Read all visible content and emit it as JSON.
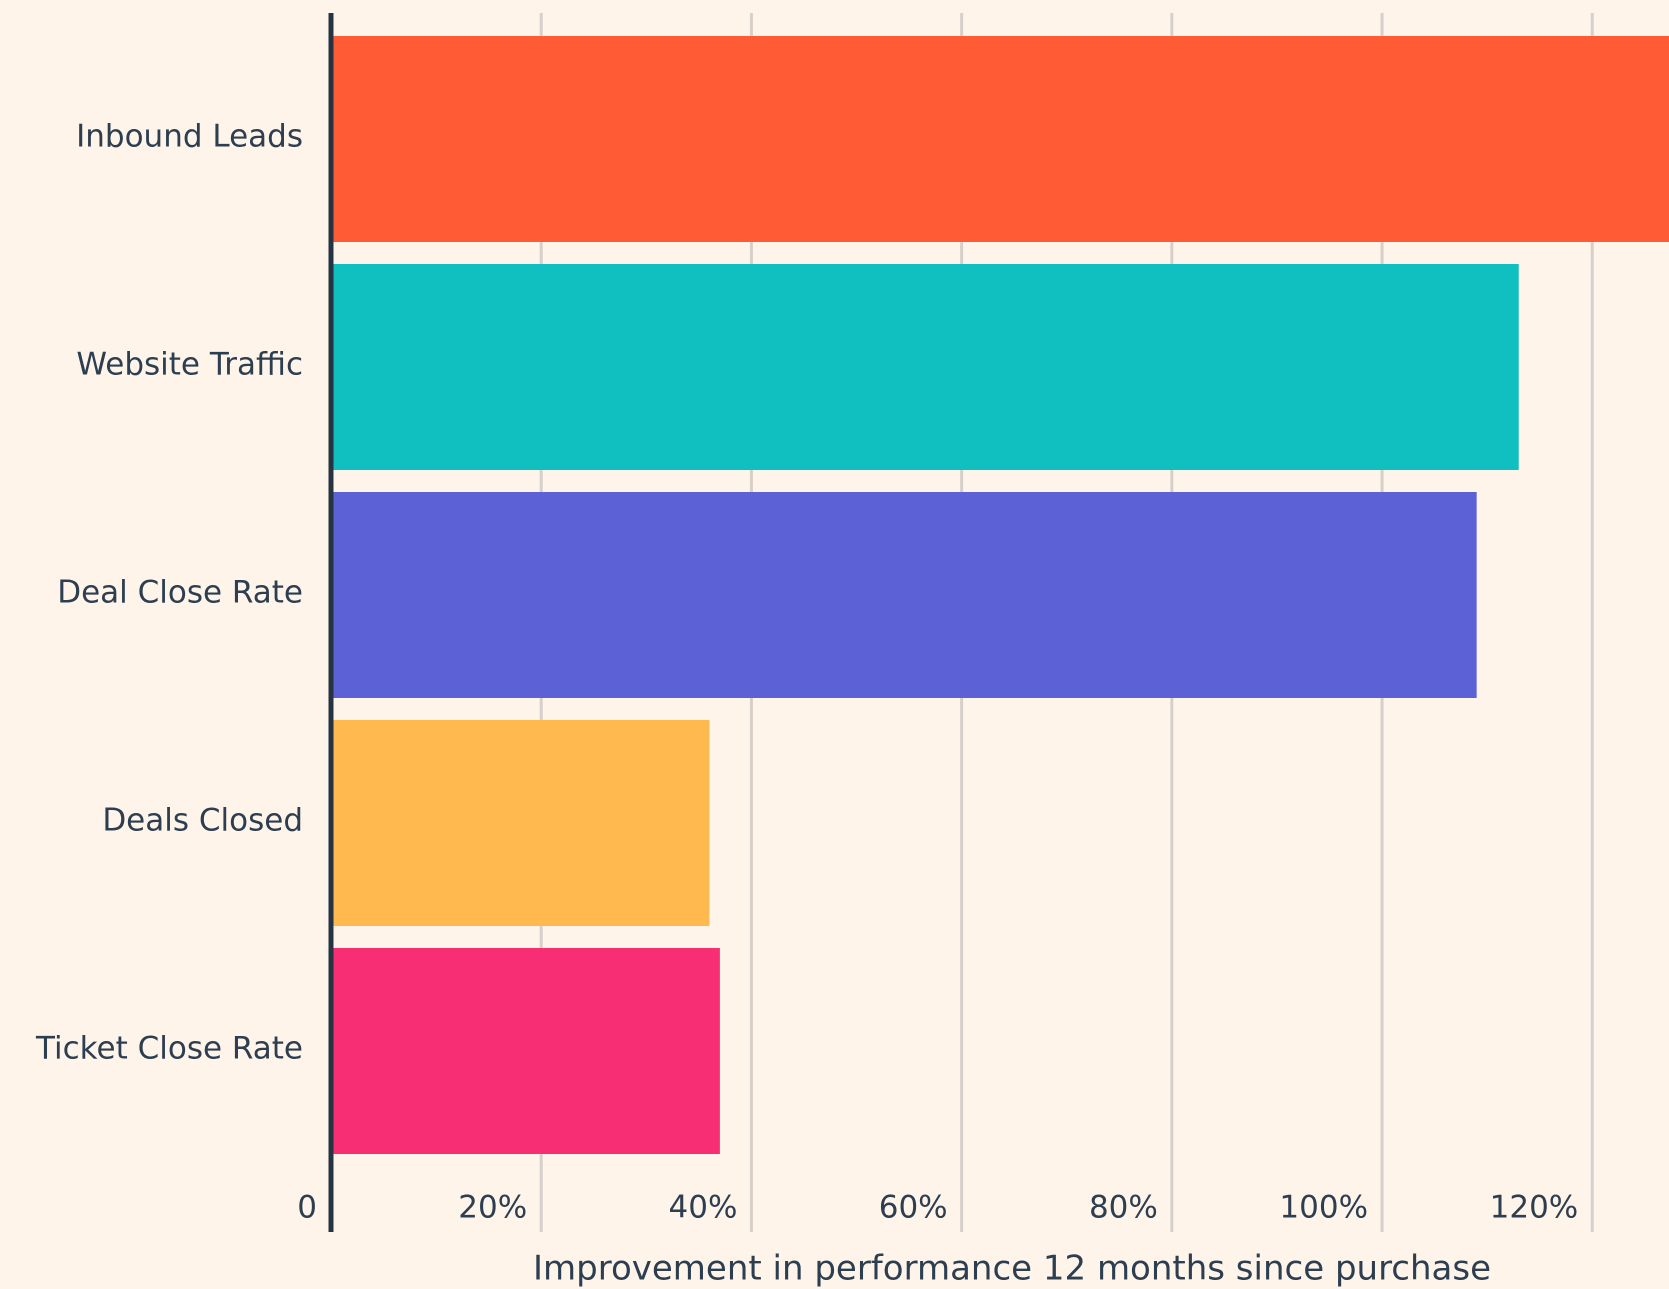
{
  "chart_data": {
    "type": "bar",
    "orientation": "horizontal",
    "x_label": "Improvement in performance 12 months since purchase",
    "categories": [
      "Inbound Leads",
      "Website Traffic",
      "Deal Close Rate",
      "Deals Closed",
      "Ticket Close Rate"
    ],
    "values": [
      129,
      113,
      109,
      36,
      37
    ],
    "colors": [
      "#ff5c35",
      "#10bfbf",
      "#5c62d6",
      "#ffb94e",
      "#f72e74"
    ],
    "xlim": [
      0,
      127.3
    ],
    "xticks": [
      0,
      {
        "value": 20,
        "label": "20%"
      },
      {
        "value": 40,
        "label": "40%"
      },
      {
        "value": 60,
        "label": "60%"
      },
      {
        "value": 80,
        "label": "80%"
      },
      {
        "value": 100,
        "label": "100%"
      },
      {
        "value": 120,
        "label": "120%"
      }
    ],
    "grid": true
  }
}
